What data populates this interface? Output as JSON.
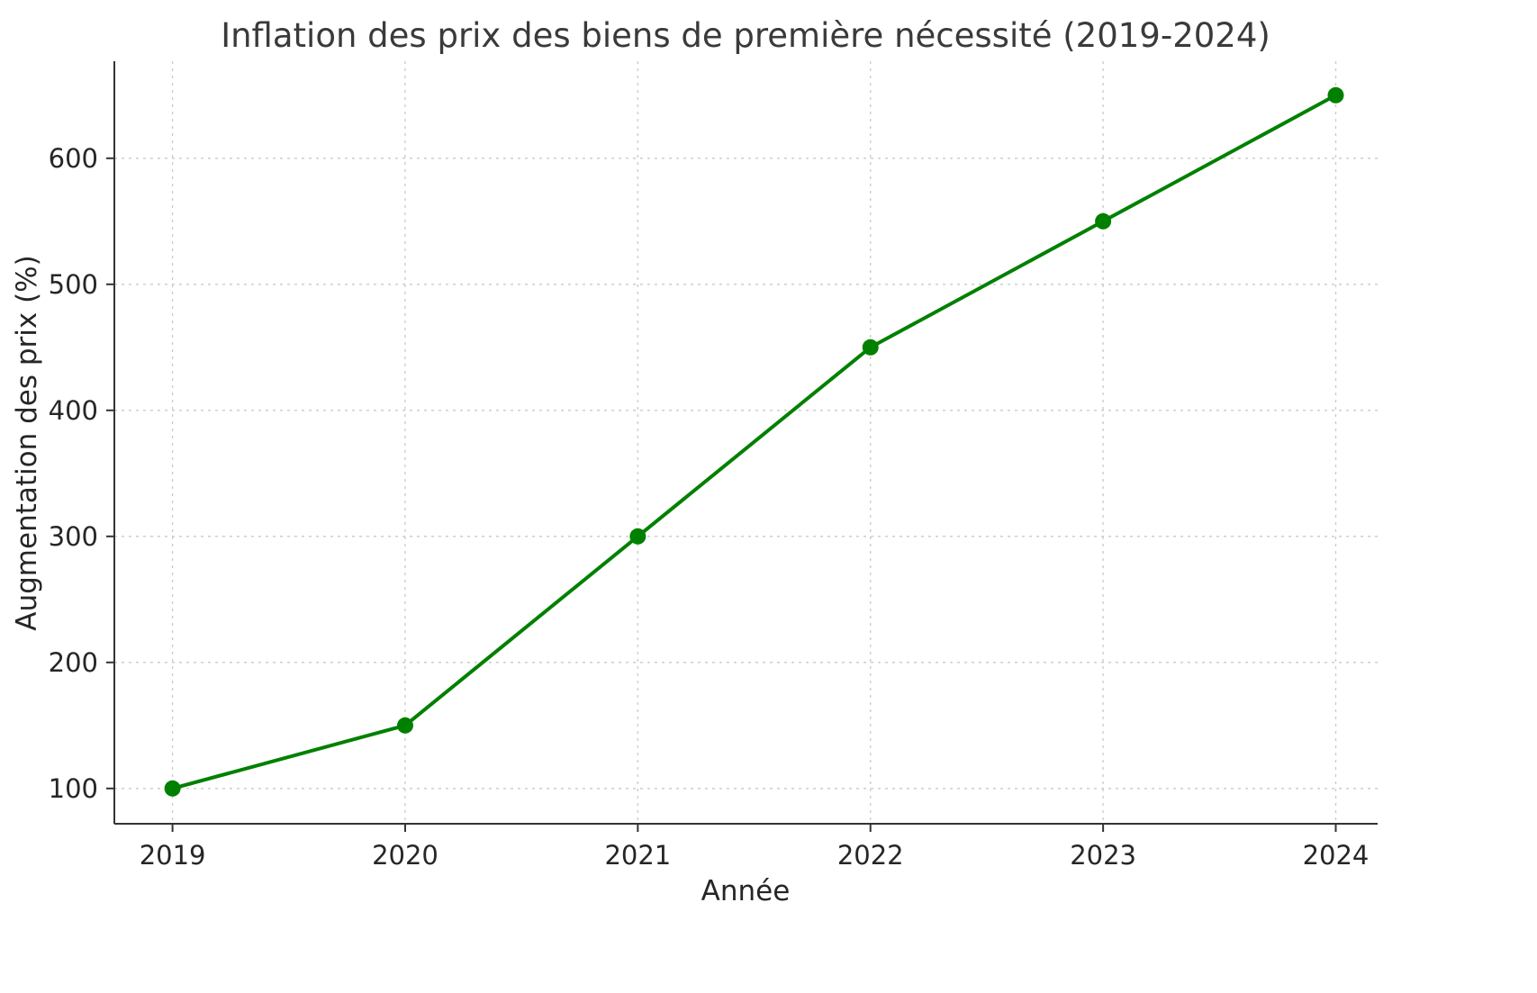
{
  "chart_data": {
    "type": "line",
    "title": "Inflation des prix des biens de première nécessité (2019-2024)",
    "xlabel": "Année",
    "ylabel": "Augmentation des prix (%)",
    "x": [
      2019,
      2020,
      2021,
      2022,
      2023,
      2024
    ],
    "series": [
      {
        "name": "Augmentation des prix",
        "values": [
          100,
          150,
          300,
          450,
          550,
          650
        ],
        "color": "#008000",
        "marker": "circle"
      }
    ],
    "xticks": [
      2019,
      2020,
      2021,
      2022,
      2023,
      2024
    ],
    "yticks": [
      100,
      200,
      300,
      400,
      500,
      600
    ],
    "xlim": [
      2018.75,
      2024.18
    ],
    "ylim": [
      72,
      677
    ],
    "grid": true,
    "grid_style": "dashed",
    "legend_position": "none"
  },
  "colors": {
    "line": "#008000",
    "marker": "#008000",
    "grid": "#c9c9c9",
    "spine": "#333333",
    "tick": "#333333",
    "text": "#262626",
    "background": "#ffffff"
  }
}
